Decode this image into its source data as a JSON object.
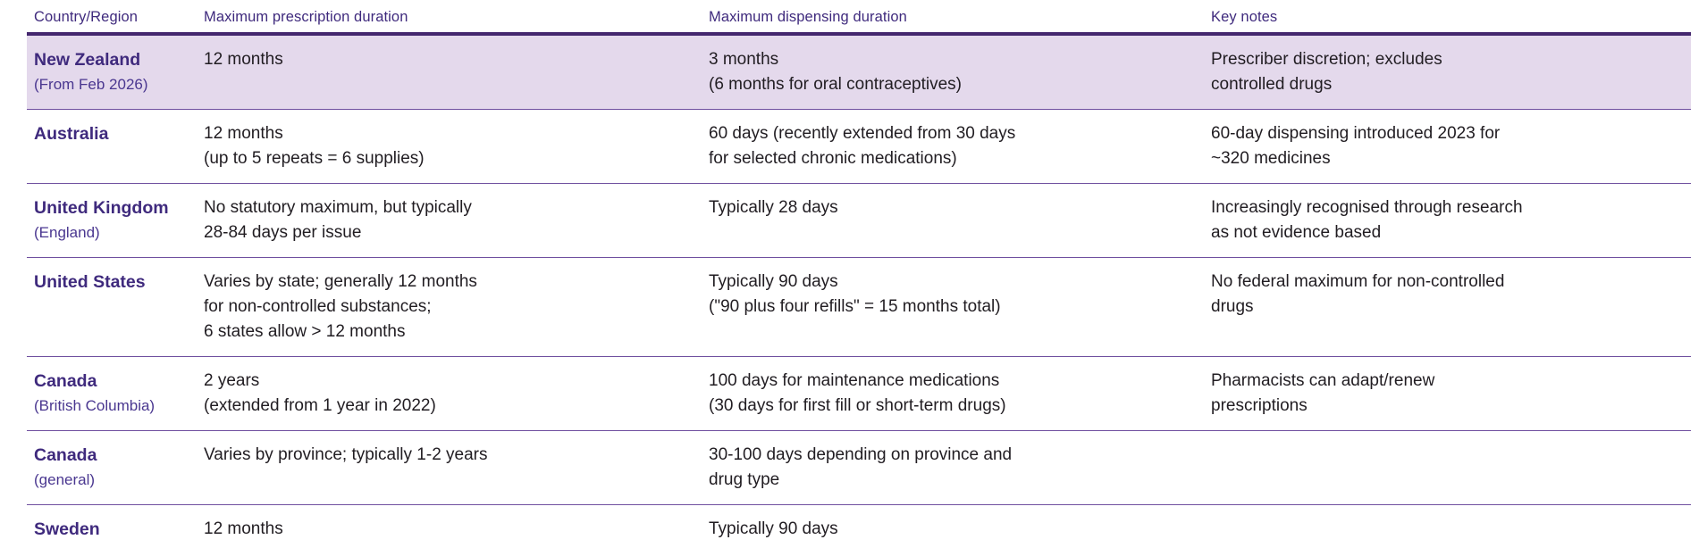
{
  "colors": {
    "header_text": "#3f2a7d",
    "country_text": "#3f2a7d",
    "header_border": "#44276e",
    "row_divider": "#6f4f9f",
    "highlight_row_bg": "#e4d9ec",
    "body_text": "#211d22"
  },
  "chart_data": {
    "type": "table",
    "columns": [
      "Country/Region",
      "Maximum prescription duration",
      "Maximum dispensing duration",
      "Key notes"
    ],
    "rows": [
      {
        "country": "New Zealand",
        "region": "(From Feb 2026)",
        "max_prescription": "12 months",
        "max_dispensing": "3 months\n(6 months for oral contraceptives)",
        "key_notes": "Prescriber discretion; excludes\ncontrolled drugs",
        "highlighted": true
      },
      {
        "country": "Australia",
        "region": "",
        "max_prescription": "12 months\n(up to 5 repeats = 6 supplies)",
        "max_dispensing": "60 days (recently extended from 30 days\nfor selected chronic medications)",
        "key_notes": "60-day dispensing introduced 2023 for\n~320 medicines",
        "highlighted": false
      },
      {
        "country": "United Kingdom",
        "region": "(England)",
        "max_prescription": "No statutory maximum, but typically\n28-84 days per issue",
        "max_dispensing": "Typically 28 days",
        "key_notes": "Increasingly recognised through research\nas not evidence based",
        "highlighted": false
      },
      {
        "country": "United States",
        "region": "",
        "max_prescription": "Varies by state; generally 12 months\nfor non-controlled substances;\n6 states allow > 12 months",
        "max_dispensing": "Typically 90 days\n(\"90 plus four refills\" = 15 months total)",
        "key_notes": "No federal maximum for non-controlled\ndrugs",
        "highlighted": false
      },
      {
        "country": "Canada",
        "region": "(British Columbia)",
        "max_prescription": "2 years\n(extended from 1 year in 2022)",
        "max_dispensing": "100 days for maintenance medications\n(30 days for first fill or short-term drugs)",
        "key_notes": "Pharmacists can adapt/renew\nprescriptions",
        "highlighted": false
      },
      {
        "country": "Canada",
        "region": "(general)",
        "max_prescription": "Varies by province; typically 1-2 years",
        "max_dispensing": "30-100 days depending on province and\ndrug type",
        "key_notes": "",
        "highlighted": false
      },
      {
        "country": "Sweden",
        "region": "",
        "max_prescription": "12 months",
        "max_dispensing": "Typically 90 days",
        "key_notes": "",
        "highlighted": false
      }
    ]
  }
}
